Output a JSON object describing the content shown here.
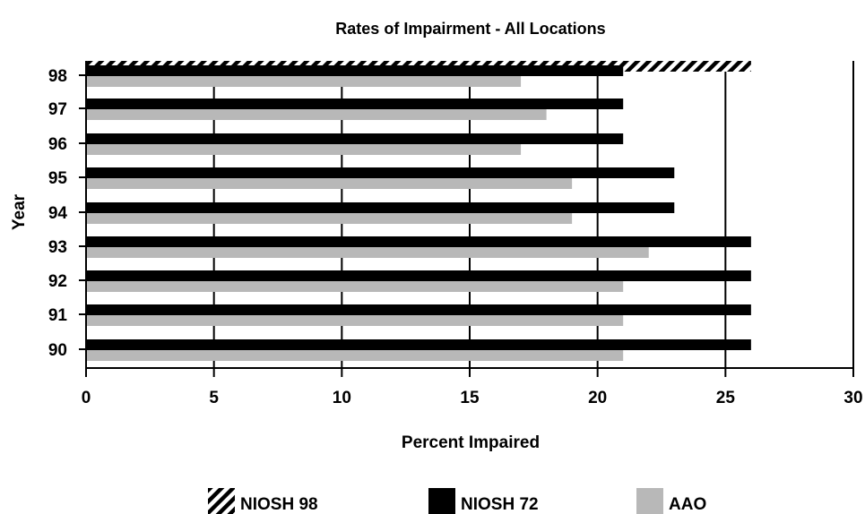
{
  "chart_data": {
    "type": "bar",
    "orientation": "horizontal",
    "title": "Rates of Impairment - All Locations",
    "xlabel": "Percent Impaired",
    "ylabel": "Year",
    "xlim": [
      0,
      30
    ],
    "x_ticks": [
      0,
      5,
      10,
      15,
      20,
      25,
      30
    ],
    "categories": [
      "90",
      "91",
      "92",
      "93",
      "94",
      "95",
      "96",
      "97",
      "98"
    ],
    "series": [
      {
        "name": "NIOSH 98",
        "color": "#000000",
        "pattern": "diagonal-hatch",
        "values": [
          null,
          null,
          null,
          null,
          null,
          null,
          null,
          null,
          26
        ]
      },
      {
        "name": "NIOSH 72",
        "color": "#000000",
        "values": [
          26,
          26,
          26,
          26,
          23,
          23,
          21,
          21,
          21
        ]
      },
      {
        "name": "AAO",
        "color": "#b8b8b8",
        "values": [
          21,
          21,
          21,
          22,
          19,
          19,
          17,
          18,
          17
        ]
      }
    ],
    "grid": {
      "x": true,
      "y": false
    },
    "legend_position": "bottom"
  }
}
